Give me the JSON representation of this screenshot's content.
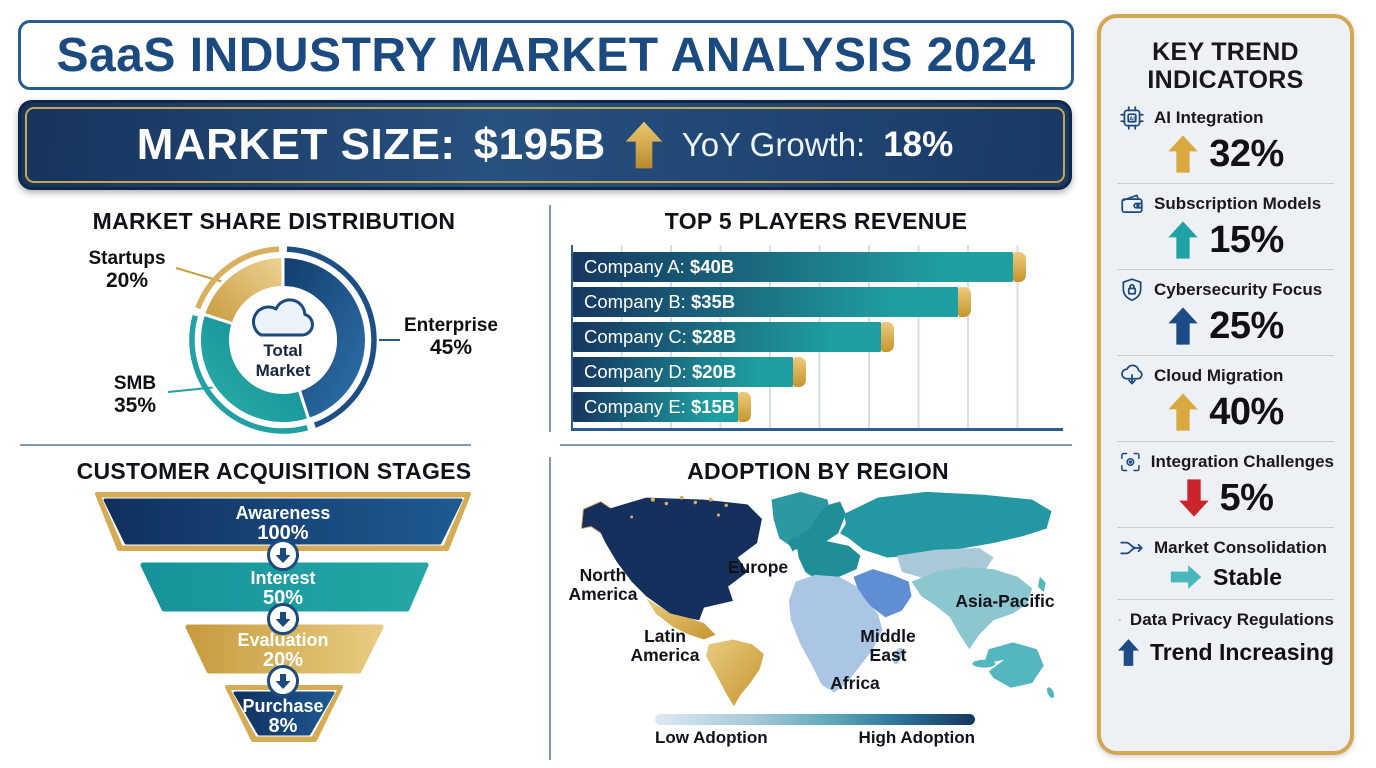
{
  "header": {
    "title": "SaaS INDUSTRY MARKET ANALYSIS 2024"
  },
  "market_banner": {
    "label": "MARKET SIZE:",
    "value": "$195B",
    "arrow_icon": "up-arrow-icon",
    "growth_label": "YoY Growth:",
    "growth_value": "18%"
  },
  "colors": {
    "navy": "#1d4a7e",
    "teal": "#21a1a4",
    "gold": "#d9ae5f",
    "red": "#c9252b"
  },
  "sections": {
    "market_share": {
      "title": "MARKET SHARE DISTRIBUTION"
    },
    "top_players": {
      "title": "TOP 5 PLAYERS REVENUE"
    },
    "funnel": {
      "title": "CUSTOMER ACQUISITION STAGES"
    },
    "adoption": {
      "title": "ADOPTION BY REGION"
    }
  },
  "chart_data": [
    {
      "type": "pie",
      "title": "MARKET SHARE DISTRIBUTION",
      "center_icon": "cloud-icon",
      "center_label": "Total Market",
      "segments": [
        {
          "label": "Enterprise",
          "value": 45,
          "display": "45%",
          "color": "#1d4f85"
        },
        {
          "label": "SMB",
          "value": 35,
          "display": "35%",
          "color": "#21a1a4"
        },
        {
          "label": "Startups",
          "value": 20,
          "display": "20%",
          "color": "#d9ae5f"
        }
      ]
    },
    {
      "type": "bar",
      "title": "TOP 5 PLAYERS REVENUE",
      "categories": [
        "Company A",
        "Company B",
        "Company C",
        "Company D",
        "Company E"
      ],
      "values": [
        40,
        35,
        28,
        20,
        15
      ],
      "unit": "$B",
      "bars": [
        {
          "name": "Company A:",
          "value": 40,
          "display": "$40B"
        },
        {
          "name": "Company B:",
          "value": 35,
          "display": "$35B"
        },
        {
          "name": "Company C:",
          "value": 28,
          "display": "$28B"
        },
        {
          "name": "Company D:",
          "value": 20,
          "display": "$20B"
        },
        {
          "name": "Company E:",
          "value": 15,
          "display": "$15B"
        }
      ],
      "xlim": [
        0,
        45
      ],
      "grid": true
    },
    {
      "type": "funnel",
      "title": "CUSTOMER ACQUISITION STAGES",
      "stages": [
        {
          "label": "Awareness",
          "value": 100,
          "display": "100%",
          "color": "#15406f"
        },
        {
          "label": "Interest",
          "value": 50,
          "display": "50%",
          "color": "#1d9a9d"
        },
        {
          "label": "Evaluation",
          "value": 20,
          "display": "20%",
          "color": "#d5ab55"
        },
        {
          "label": "Purchase",
          "value": 8,
          "display": "8%",
          "color": "#174b7d"
        }
      ]
    },
    {
      "type": "choropleth",
      "title": "ADOPTION BY REGION",
      "regions": [
        {
          "name": "North America",
          "color": "#16305e"
        },
        {
          "name": "Europe",
          "color": "#1f8e99"
        },
        {
          "name": "Asia-Pacific",
          "color": "#8cc6cf"
        },
        {
          "name": "Latin America",
          "color": "#d9ae5f"
        },
        {
          "name": "Middle East",
          "color": "#5f8fd2"
        },
        {
          "name": "Africa",
          "color": "#abc6e4"
        }
      ],
      "legend": {
        "low": "Low Adoption",
        "high": "High Adoption"
      }
    }
  ],
  "sidebar": {
    "title": "KEY TREND INDICATORS",
    "items": [
      {
        "icon": "ai-chip-icon",
        "label": "AI Integration",
        "trend": "up",
        "trend_color": "#d9a83f",
        "value": "32%",
        "value_style": "number"
      },
      {
        "icon": "wallet-icon",
        "label": "Subscription Models",
        "trend": "up",
        "trend_color": "#1fa3a6",
        "value": "15%",
        "value_style": "number"
      },
      {
        "icon": "shield-lock-icon",
        "label": "Cybersecurity Focus",
        "trend": "up",
        "trend_color": "#1c4b85",
        "value": "25%",
        "value_style": "number"
      },
      {
        "icon": "cloud-arrow-icon",
        "label": "Cloud Migration",
        "trend": "up",
        "trend_color": "#d9a83f",
        "value": "40%",
        "value_style": "number"
      },
      {
        "icon": "integration-icon",
        "label": "Integration Challenges",
        "trend": "down",
        "trend_color": "#c9252b",
        "value": "5%",
        "value_style": "number"
      },
      {
        "icon": "merge-arrows-icon",
        "label": "Market Consolidation",
        "trend": "right",
        "trend_color": "#49b8bc",
        "value": "Stable",
        "value_style": "text"
      },
      {
        "icon": "padlock-icon",
        "label": "Data Privacy Regulations",
        "trend": "up",
        "trend_color": "#1c4b85",
        "value": "Trend Increasing",
        "value_style": "text"
      }
    ]
  }
}
